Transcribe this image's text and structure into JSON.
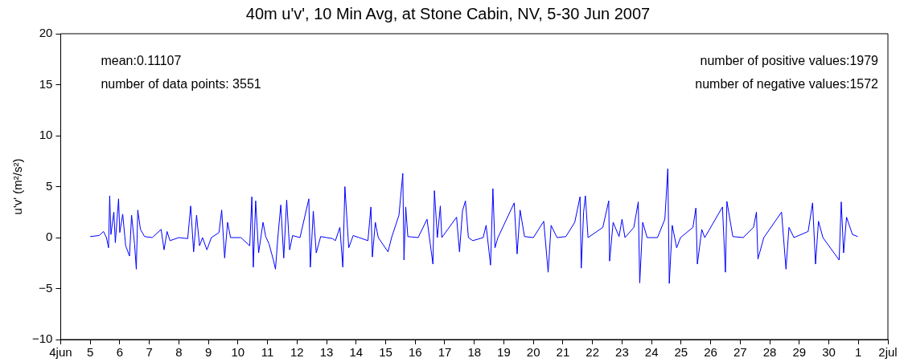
{
  "chart_data": {
    "type": "line",
    "title": "40m u'v', 10 Min Avg, at Stone Cabin, NV, 5-30 Jun 2007",
    "ylabel": "u'v' (m²/s²)",
    "annotations": [
      "mean:0.11107",
      "number of data points: 3551",
      "number of positive values:1979",
      "number of negative values:1572"
    ],
    "xlim": [
      "2007-06-04",
      "2007-07-02"
    ],
    "xticks": [
      {
        "value": "2007-06-04",
        "label": "4jun"
      },
      {
        "value": "2007-06-05",
        "label": "5"
      },
      {
        "value": "2007-06-06",
        "label": "6"
      },
      {
        "value": "2007-06-07",
        "label": "7"
      },
      {
        "value": "2007-06-08",
        "label": "8"
      },
      {
        "value": "2007-06-09",
        "label": "9"
      },
      {
        "value": "2007-06-10",
        "label": "10"
      },
      {
        "value": "2007-06-11",
        "label": "11"
      },
      {
        "value": "2007-06-12",
        "label": "12"
      },
      {
        "value": "2007-06-13",
        "label": "13"
      },
      {
        "value": "2007-06-14",
        "label": "14"
      },
      {
        "value": "2007-06-15",
        "label": "15"
      },
      {
        "value": "2007-06-16",
        "label": "16"
      },
      {
        "value": "2007-06-17",
        "label": "17"
      },
      {
        "value": "2007-06-18",
        "label": "18"
      },
      {
        "value": "2007-06-19",
        "label": "19"
      },
      {
        "value": "2007-06-20",
        "label": "20"
      },
      {
        "value": "2007-06-21",
        "label": "21"
      },
      {
        "value": "2007-06-22",
        "label": "22"
      },
      {
        "value": "2007-06-23",
        "label": "23"
      },
      {
        "value": "2007-06-24",
        "label": "24"
      },
      {
        "value": "2007-06-25",
        "label": "25"
      },
      {
        "value": "2007-06-26",
        "label": "26"
      },
      {
        "value": "2007-06-27",
        "label": "27"
      },
      {
        "value": "2007-06-28",
        "label": "28"
      },
      {
        "value": "2007-06-29",
        "label": "29"
      },
      {
        "value": "2007-06-30",
        "label": "30"
      },
      {
        "value": "2007-07-01",
        "label": "1"
      },
      {
        "value": "2007-07-02",
        "label": "2jul"
      }
    ],
    "ylim": [
      -10,
      20
    ],
    "yticks": [
      -10,
      -5,
      0,
      5,
      10,
      15,
      20
    ],
    "grid": false,
    "legend": false,
    "marker": "none",
    "line_style": "solid",
    "x": [
      "2007-06-05T00:00",
      "2007-06-05T07:12",
      "2007-06-05T10:48",
      "2007-06-05T13:12",
      "2007-06-05T14:53",
      "2007-06-05T15:50",
      "2007-06-05T16:48",
      "2007-06-05T19:12",
      "2007-06-05T20:24",
      "2007-06-05T23:02",
      "2007-06-06T00:00",
      "2007-06-06T02:24",
      "2007-06-06T04:48",
      "2007-06-06T07:55",
      "2007-06-06T09:36",
      "2007-06-06T12:00",
      "2007-06-06T13:26",
      "2007-06-06T14:38",
      "2007-06-06T16:48",
      "2007-06-06T20:10",
      "2007-06-07T02:24",
      "2007-06-07T09:36",
      "2007-06-07T12:00",
      "2007-06-07T14:24",
      "2007-06-07T16:48",
      "2007-06-08T00:00",
      "2007-06-08T07:12",
      "2007-06-08T09:36",
      "2007-06-08T12:00",
      "2007-06-08T14:24",
      "2007-06-08T16:48",
      "2007-06-08T19:12",
      "2007-06-08T22:48",
      "2007-06-09T02:24",
      "2007-06-09T08:38",
      "2007-06-09T10:48",
      "2007-06-09T13:12",
      "2007-06-09T15:36",
      "2007-06-09T18:00",
      "2007-06-10T02:24",
      "2007-06-10T09:36",
      "2007-06-10T11:17",
      "2007-06-10T12:29",
      "2007-06-10T14:24",
      "2007-06-10T16:48",
      "2007-06-10T20:24",
      "2007-06-10T22:34",
      "2007-06-11T01:12",
      "2007-06-11T04:48",
      "2007-06-11T06:29",
      "2007-06-11T08:24",
      "2007-06-11T10:48",
      "2007-06-11T13:12",
      "2007-06-11T15:36",
      "2007-06-11T18:00",
      "2007-06-11T20:24",
      "2007-06-12T02:24",
      "2007-06-12T09:36",
      "2007-06-12T10:48",
      "2007-06-12T13:12",
      "2007-06-12T15:36",
      "2007-06-12T19:12",
      "2007-06-13T04:48",
      "2007-06-13T07:12",
      "2007-06-13T10:48",
      "2007-06-13T13:12",
      "2007-06-13T14:53",
      "2007-06-13T18:00",
      "2007-06-13T21:36",
      "2007-06-14T02:24",
      "2007-06-14T09:36",
      "2007-06-14T12:00",
      "2007-06-14T13:12",
      "2007-06-14T15:36",
      "2007-06-14T18:00",
      "2007-06-15T01:55",
      "2007-06-15T04:48",
      "2007-06-15T10:48",
      "2007-06-15T13:55",
      "2007-06-15T14:53",
      "2007-06-15T16:19",
      "2007-06-15T18:00",
      "2007-06-16T02:24",
      "2007-06-16T09:36",
      "2007-06-16T14:24",
      "2007-06-16T15:36",
      "2007-06-16T18:00",
      "2007-06-16T20:24",
      "2007-06-16T21:36",
      "2007-06-17T09:36",
      "2007-06-17T12:00",
      "2007-06-17T14:24",
      "2007-06-17T16:48",
      "2007-06-17T19:12",
      "2007-06-17T22:48",
      "2007-06-18T07:12",
      "2007-06-18T09:36",
      "2007-06-18T13:12",
      "2007-06-18T15:07",
      "2007-06-18T16:48",
      "2007-06-18T19:12",
      "2007-06-19T08:24",
      "2007-06-19T10:48",
      "2007-06-19T13:12",
      "2007-06-19T16:48",
      "2007-06-20T00:00",
      "2007-06-20T08:24",
      "2007-06-20T12:00",
      "2007-06-20T14:24",
      "2007-06-20T19:12",
      "2007-06-21T02:24",
      "2007-06-21T09:36",
      "2007-06-21T13:55",
      "2007-06-21T14:53",
      "2007-06-21T16:48",
      "2007-06-21T18:14",
      "2007-06-21T20:24",
      "2007-06-22T08:24",
      "2007-06-22T13:12",
      "2007-06-22T13:55",
      "2007-06-22T16:48",
      "2007-06-22T21:36",
      "2007-06-23T00:00",
      "2007-06-23T02:24",
      "2007-06-23T09:36",
      "2007-06-23T13:12",
      "2007-06-23T14:24",
      "2007-06-23T16:48",
      "2007-06-23T20:24",
      "2007-06-24T04:48",
      "2007-06-24T10:48",
      "2007-06-24T13:12",
      "2007-06-24T14:24",
      "2007-06-24T16:48",
      "2007-06-24T20:24",
      "2007-06-24T23:31",
      "2007-06-25T09:36",
      "2007-06-25T12:00",
      "2007-06-25T13:12",
      "2007-06-25T16:48",
      "2007-06-25T19:12",
      "2007-06-26T09:36",
      "2007-06-26T12:00",
      "2007-06-26T13:12",
      "2007-06-26T18:00",
      "2007-06-27T02:24",
      "2007-06-27T10:48",
      "2007-06-27T13:12",
      "2007-06-27T14:24",
      "2007-06-27T19:12",
      "2007-06-28T09:36",
      "2007-06-28T13:12",
      "2007-06-28T15:36",
      "2007-06-28T19:41",
      "2007-06-29T07:12",
      "2007-06-29T10:48",
      "2007-06-29T13:12",
      "2007-06-29T15:36",
      "2007-06-29T19:12",
      "2007-06-30T08:24",
      "2007-06-30T10:05",
      "2007-06-30T12:00",
      "2007-06-30T14:24",
      "2007-06-30T19:12",
      "2007-06-30T23:31"
    ],
    "series": [
      {
        "color": "#0000ff",
        "values": [
          0.1,
          0.2,
          0.6,
          0.0,
          -1.0,
          4.1,
          0.3,
          2.5,
          -0.5,
          3.8,
          0.5,
          2.3,
          -0.8,
          -1.8,
          2.2,
          -0.6,
          -3.1,
          2.7,
          0.8,
          0.1,
          0.0,
          0.8,
          -1.2,
          0.6,
          -0.3,
          0.0,
          -0.1,
          3.1,
          -1.4,
          2.2,
          -0.8,
          0.0,
          -1.2,
          0.0,
          0.5,
          2.7,
          -2.0,
          1.5,
          0.0,
          0.0,
          -0.8,
          4.0,
          -2.9,
          3.6,
          -1.5,
          1.5,
          0.1,
          -0.6,
          -2.2,
          -3.1,
          0.0,
          3.2,
          -2.0,
          3.7,
          -1.2,
          0.2,
          0.0,
          3.8,
          -2.9,
          2.6,
          -1.5,
          0.1,
          -0.1,
          -0.3,
          1.0,
          -2.9,
          5.0,
          -1.0,
          0.2,
          0.0,
          -0.3,
          3.0,
          -1.9,
          1.5,
          0.0,
          -1.4,
          0.0,
          2.2,
          6.3,
          -2.2,
          3.0,
          0.1,
          0.0,
          1.8,
          -2.6,
          4.6,
          0.0,
          3.1,
          0.0,
          2.0,
          -1.4,
          2.6,
          3.6,
          0.0,
          -0.3,
          0.0,
          1.2,
          -2.7,
          4.8,
          -1.0,
          0.0,
          3.4,
          -1.6,
          2.7,
          0.1,
          0.0,
          1.6,
          -3.4,
          1.2,
          0.0,
          0.1,
          1.5,
          4.0,
          -3.0,
          2.5,
          4.1,
          0.0,
          1.0,
          3.6,
          -2.3,
          1.5,
          0.1,
          1.8,
          0.0,
          1.0,
          3.5,
          -4.45,
          1.5,
          0.0,
          0.0,
          1.8,
          6.75,
          -4.5,
          1.2,
          -1.0,
          0.0,
          1.0,
          2.9,
          -2.6,
          0.8,
          0.0,
          3.0,
          -3.4,
          3.55,
          0.1,
          0.0,
          1.0,
          2.5,
          -2.1,
          0.0,
          2.5,
          -3.1,
          1.0,
          0.0,
          0.6,
          3.4,
          -2.6,
          1.6,
          0.0,
          -2.2,
          3.5,
          -1.5,
          2.0,
          0.3,
          0.1
        ]
      }
    ]
  }
}
